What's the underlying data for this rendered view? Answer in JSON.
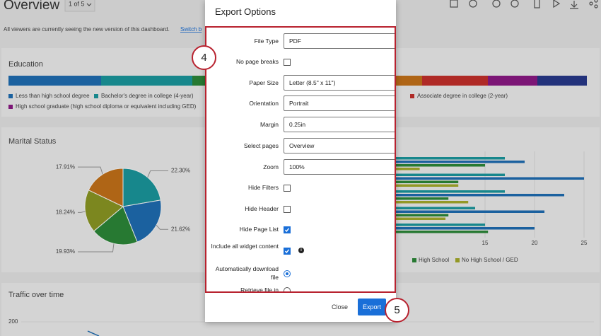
{
  "header": {
    "title": "Overview",
    "page_select": "1 of 5"
  },
  "notice": {
    "text": "All viewers are currently seeing the new version of this dashboard.",
    "link": "Switch b"
  },
  "education": {
    "title": "Education",
    "legend": [
      {
        "name": "Less than high school degree",
        "color": "#1f6fb5"
      },
      {
        "name": "Bachelor's degree in college (4-year)",
        "color": "#1b9aa0"
      },
      {
        "name": "Associate degree in college (2-year)",
        "color": "#c8302c"
      },
      {
        "name": "High school graduate (high school diploma or equivalent including GED)",
        "color": "#8e1a87"
      }
    ]
  },
  "marital_status": {
    "title": "Marital Status",
    "chart_data": {
      "type": "pie",
      "values": [
        22.3,
        21.62,
        19.93,
        18.24,
        17.91
      ],
      "value_labels": [
        "22.30%",
        "21.62%",
        "19.93%",
        "18.24%",
        "17.91%"
      ],
      "colors": [
        "#1b9aa0",
        "#1f6fb5",
        "#2d8a3a",
        "#8e9a24",
        "#c8741a"
      ]
    }
  },
  "bar_chart": {
    "chart_data": {
      "type": "hbar",
      "xlim": [
        0,
        25
      ],
      "xticks": [
        15,
        20,
        25
      ],
      "series": [
        {
          "color": "#1b9aa0",
          "values": [
            17,
            17,
            17,
            14,
            15
          ]
        },
        {
          "color": "#1f6fb5",
          "values": [
            19,
            25,
            23,
            21,
            20
          ]
        },
        {
          "name": "High School",
          "color": "#2d8a3a",
          "values": [
            15,
            12.3,
            11.3,
            11.3,
            15.3
          ]
        },
        {
          "name": "No High School / GED",
          "color": "#a8ae2c",
          "values": [
            8.4,
            12.3,
            13.3,
            11,
            null
          ]
        }
      ]
    }
  },
  "traffic": {
    "title": "Traffic over time",
    "yticks": [
      200
    ]
  },
  "modal": {
    "title": "Export Options",
    "fields": [
      {
        "label": "File Type",
        "control": "select",
        "value": "PDF"
      },
      {
        "label": "No page breaks",
        "control": "checkbox",
        "checked": false
      },
      {
        "label": "Paper Size",
        "control": "select",
        "value": "Letter (8.5\" x 11\")"
      },
      {
        "label": "Orientation",
        "control": "select",
        "value": "Portrait"
      },
      {
        "label": "Margin",
        "control": "select",
        "value": "0.25in"
      },
      {
        "label": "Select pages",
        "control": "select",
        "value": "Overview"
      },
      {
        "label": "Zoom",
        "control": "select",
        "value": "100%"
      },
      {
        "label": "Hide Filters",
        "control": "checkbox",
        "checked": false
      },
      {
        "label": "Hide Header",
        "control": "checkbox",
        "checked": false
      },
      {
        "label": "Hide Page List",
        "control": "checkbox",
        "checked": true
      },
      {
        "label": "Include all widget content",
        "control": "checkbox",
        "checked": true,
        "info": true
      },
      {
        "label": "Automatically download file",
        "control": "radio",
        "checked": true
      },
      {
        "label": "Retrieve file in",
        "control": "radio",
        "checked": false
      }
    ],
    "close": "Close",
    "export": "Export",
    "steps": [
      "4",
      "5"
    ]
  }
}
